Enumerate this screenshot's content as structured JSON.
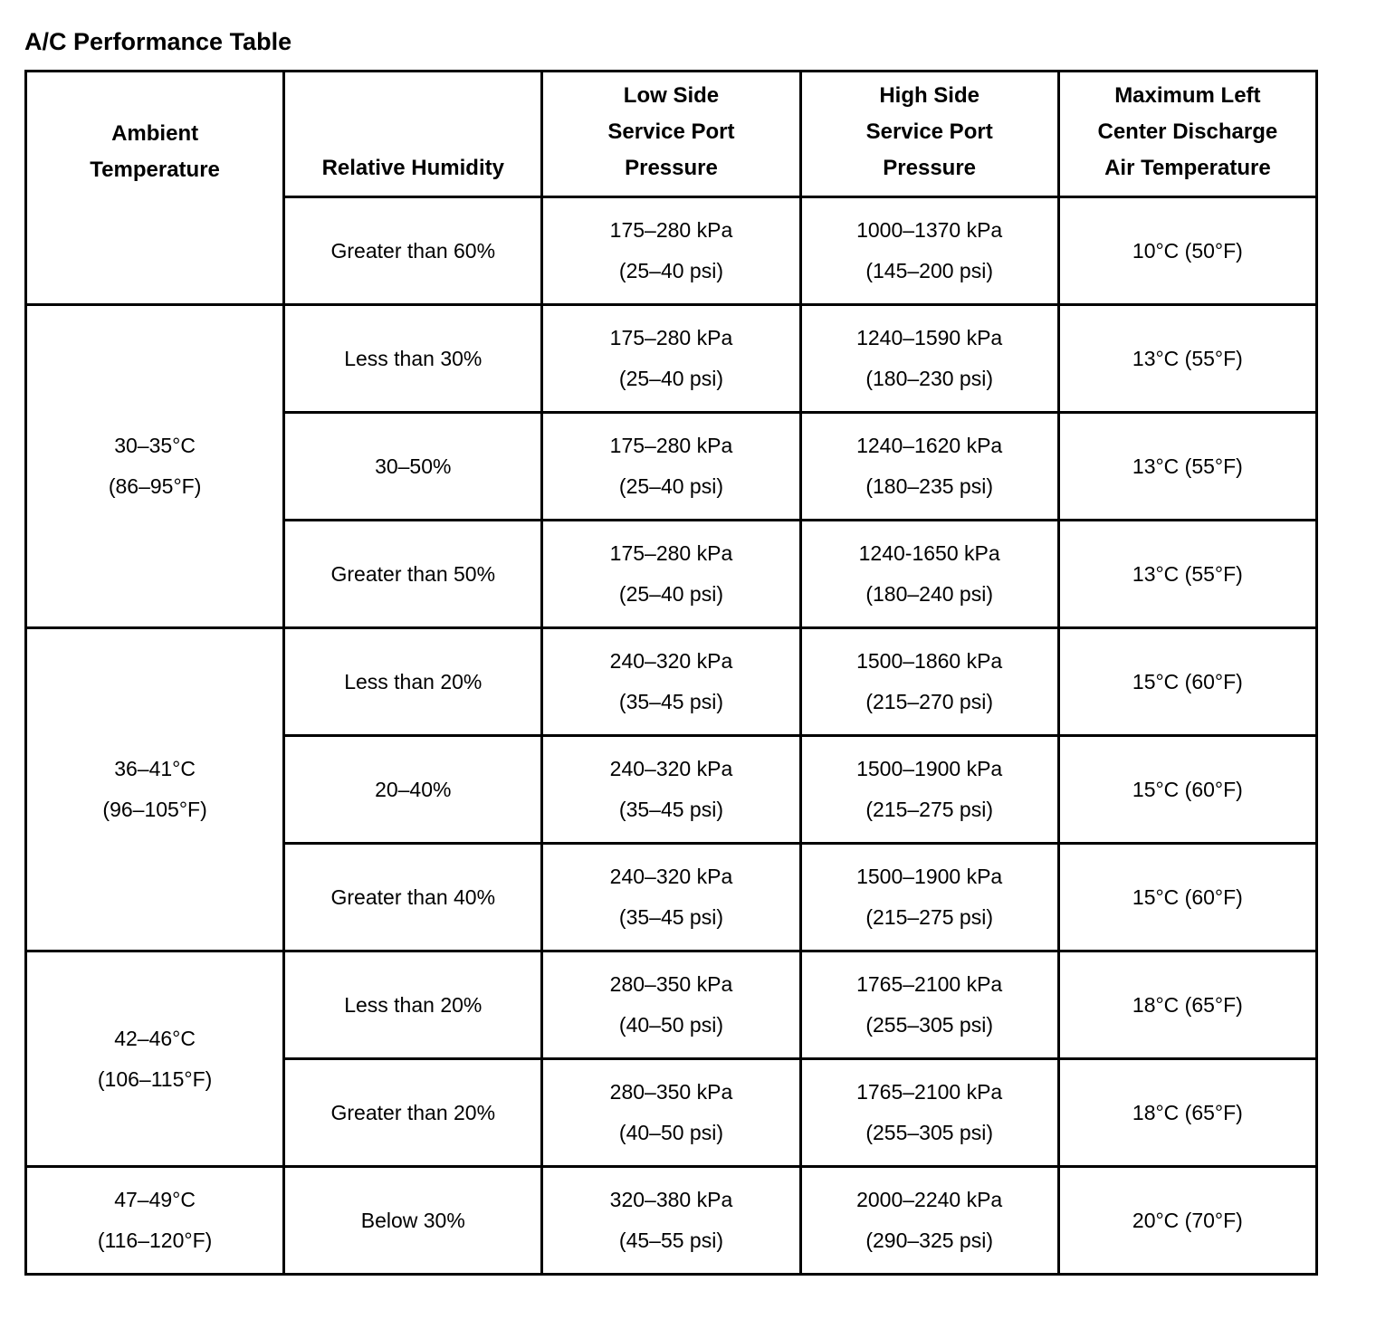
{
  "title": "A/C Performance Table",
  "table": {
    "headers": {
      "ambient": "Ambient\nTemperature",
      "humidity": "Relative Humidity",
      "low": "Low Side\nService Port\nPressure",
      "high": "High Side\nService Port\nPressure",
      "discharge": "Maximum Left\nCenter Discharge\nAir Temperature"
    },
    "ambient_groups": [
      {
        "label": "",
        "rowspan": 1
      },
      {
        "label": "30–35°C\n(86–95°F)",
        "rowspan": 3
      },
      {
        "label": "36–41°C\n(96–105°F)",
        "rowspan": 3
      },
      {
        "label": "42–46°C\n(106–115°F)",
        "rowspan": 2
      },
      {
        "label": "47–49°C\n(116–120°F)",
        "rowspan": 1
      }
    ],
    "rows": [
      {
        "humidity": "Greater than 60%",
        "low": "175–280 kPa\n(25–40 psi)",
        "high": "1000–1370 kPa\n(145–200 psi)",
        "discharge": "10°C (50°F)"
      },
      {
        "humidity": "Less than 30%",
        "low": "175–280 kPa\n(25–40 psi)",
        "high": "1240–1590 kPa\n(180–230 psi)",
        "discharge": "13°C (55°F)"
      },
      {
        "humidity": "30–50%",
        "low": "175–280 kPa\n(25–40 psi)",
        "high": "1240–1620 kPa\n(180–235 psi)",
        "discharge": "13°C (55°F)"
      },
      {
        "humidity": "Greater than 50%",
        "low": "175–280 kPa\n(25–40 psi)",
        "high": "1240-1650 kPa\n(180–240 psi)",
        "discharge": "13°C (55°F)"
      },
      {
        "humidity": "Less than 20%",
        "low": "240–320 kPa\n(35–45 psi)",
        "high": "1500–1860 kPa\n(215–270 psi)",
        "discharge": "15°C (60°F)"
      },
      {
        "humidity": "20–40%",
        "low": "240–320 kPa\n(35–45 psi)",
        "high": "1500–1900 kPa\n(215–275 psi)",
        "discharge": "15°C (60°F)"
      },
      {
        "humidity": "Greater than 40%",
        "low": "240–320 kPa\n(35–45 psi)",
        "high": "1500–1900 kPa\n(215–275 psi)",
        "discharge": "15°C (60°F)"
      },
      {
        "humidity": "Less than 20%",
        "low": "280–350 kPa\n(40–50 psi)",
        "high": "1765–2100 kPa\n(255–305 psi)",
        "discharge": "18°C (65°F)"
      },
      {
        "humidity": "Greater than 20%",
        "low": "280–350 kPa\n(40–50 psi)",
        "high": "1765–2100 kPa\n(255–305 psi)",
        "discharge": "18°C (65°F)"
      },
      {
        "humidity": "Below 30%",
        "low": "320–380 kPa\n(45–55 psi)",
        "high": "2000–2240 kPa\n(290–325 psi)",
        "discharge": "20°C (70°F)"
      }
    ]
  }
}
